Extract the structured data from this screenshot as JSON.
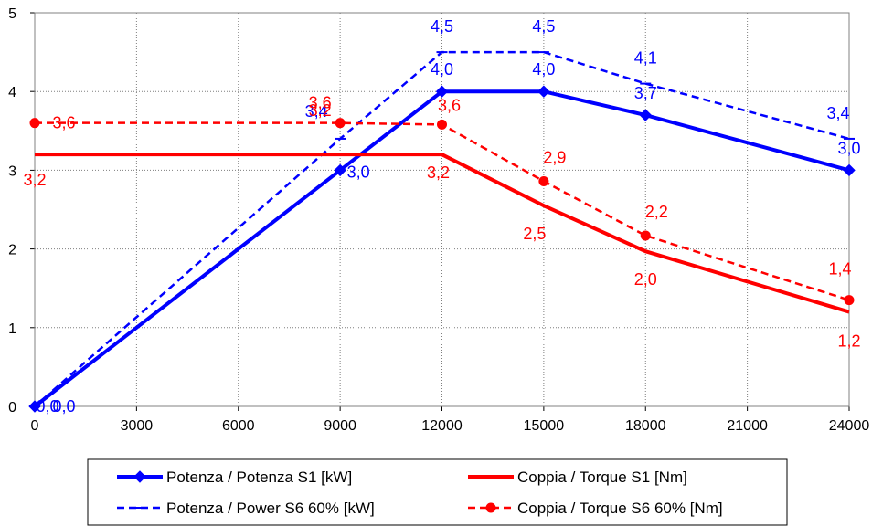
{
  "chart_data": {
    "type": "line",
    "x": [
      0,
      9000,
      12000,
      15000,
      18000,
      24000
    ],
    "xticks": [
      "0",
      "3000",
      "6000",
      "9000",
      "12000",
      "15000",
      "18000",
      "21000",
      "24000"
    ],
    "yticks": [
      "0",
      "1",
      "2",
      "3",
      "4",
      "5"
    ],
    "xlim": [
      0,
      24000
    ],
    "ylim": [
      0,
      5
    ],
    "grid": true,
    "legend_position": "bottom",
    "series": [
      {
        "name": "Potenza / Potenza S1 [kW]",
        "color": "#0000ff",
        "style": "solid",
        "marker": "diamond",
        "values": [
          0,
          3.0,
          4.0,
          4.0,
          3.7,
          3.0
        ],
        "labels": [
          "0,0",
          "3,0",
          "4,0",
          "4,0",
          "3,7",
          "3,0"
        ]
      },
      {
        "name": "Potenza / Power S6 60% [kW]",
        "color": "#0000ff",
        "style": "dashed",
        "marker": "dash",
        "values": [
          0,
          3.4,
          4.5,
          4.5,
          4.1,
          3.4
        ],
        "labels": [
          "0,0",
          "3,4",
          "4,5",
          "4,5",
          "4,1",
          "3,4"
        ]
      },
      {
        "name": "Coppia / Torque S1 [Nm]",
        "color": "#ff0000",
        "style": "solid",
        "marker": "none",
        "values": [
          3.2,
          3.2,
          3.2,
          2.55,
          1.97,
          1.2
        ],
        "labels": [
          "3,2",
          "3,2",
          "3,2",
          "2,5",
          "2,0",
          "1,2"
        ]
      },
      {
        "name": "Coppia / Torque S6 60% [Nm]",
        "color": "#ff0000",
        "style": "dashed",
        "marker": "circle",
        "values": [
          3.6,
          3.6,
          3.58,
          2.86,
          2.17,
          1.35
        ],
        "labels": [
          "3,6",
          "3,6",
          "3,6",
          "2,9",
          "2,2",
          "1,4"
        ]
      }
    ]
  }
}
